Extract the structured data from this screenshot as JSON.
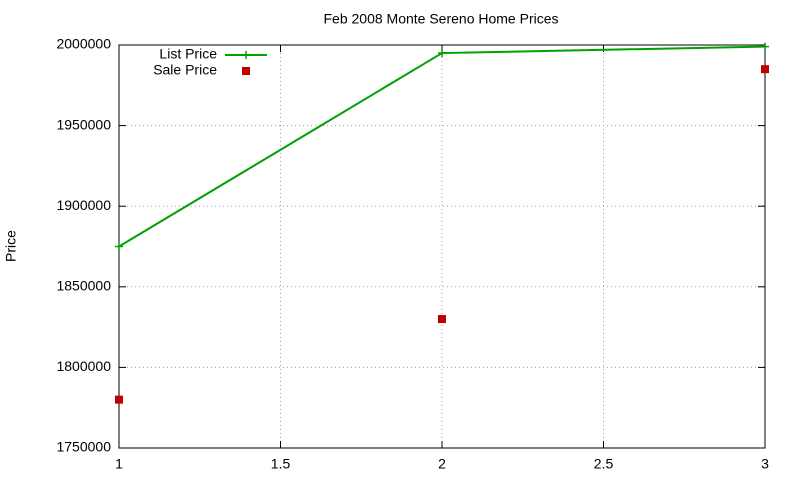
{
  "chart_data": {
    "type": "line",
    "title": "Feb 2008 Monte Sereno Home Prices",
    "y_label": "Price",
    "x": [
      1,
      2,
      3
    ],
    "series": [
      {
        "name": "List Price",
        "color": "#00a000",
        "type": "line",
        "values": [
          1875000,
          1995000,
          1999000
        ]
      },
      {
        "name": "Sale Price",
        "color": "#c00000",
        "type": "scatter",
        "values": [
          1780000,
          1830000,
          1985000
        ]
      }
    ],
    "xlim": [
      1,
      3
    ],
    "xticks": [
      1,
      1.5,
      2,
      2.5,
      3
    ],
    "ylim": [
      1750000,
      2000000
    ],
    "yticks": [
      1750000,
      1800000,
      1850000,
      1900000,
      1950000,
      2000000
    ],
    "grid": true,
    "legend": "top-left"
  }
}
